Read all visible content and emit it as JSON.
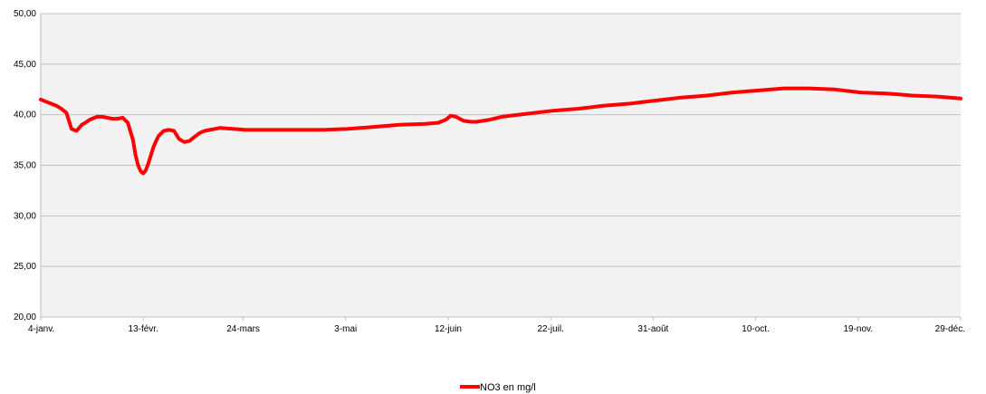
{
  "chart_data": {
    "type": "line",
    "y_ticks": [
      "50,00",
      "45,00",
      "40,00",
      "35,00",
      "30,00",
      "25,00",
      "20,00"
    ],
    "y_tick_values": [
      50,
      45,
      40,
      35,
      30,
      25,
      20
    ],
    "ylim": [
      20,
      50
    ],
    "x_ticks": [
      "4-janv.",
      "13-févr.",
      "24-mars",
      "3-mai",
      "12-juin",
      "22-juil.",
      "31-août",
      "10-oct.",
      "19-nov.",
      "29-déc."
    ],
    "x_tick_days": [
      0,
      40,
      79,
      119,
      159,
      199,
      239,
      279,
      319,
      359
    ],
    "xlim": [
      0,
      359
    ],
    "grid": true,
    "plot_background": "#f2f2f2",
    "legend_position": "bottom",
    "series": [
      {
        "name": "NO3 en mg/l",
        "color": "#ff0000",
        "x": [
          0,
          2,
          4,
          6,
          8,
          10,
          12,
          14,
          16,
          18,
          19,
          20,
          21,
          22,
          23,
          24,
          26,
          28,
          30,
          32,
          34,
          36,
          37,
          38,
          39,
          40,
          41,
          42,
          43,
          44,
          45,
          46,
          48,
          50,
          52,
          54,
          56,
          58,
          60,
          62,
          64,
          66,
          68,
          70,
          75,
          80,
          85,
          90,
          100,
          110,
          120,
          130,
          140,
          150,
          155,
          158,
          160,
          162,
          165,
          168,
          170,
          175,
          180,
          190,
          200,
          210,
          220,
          230,
          240,
          250,
          260,
          270,
          280,
          290,
          300,
          310,
          320,
          330,
          335,
          340,
          350,
          359
        ],
        "y": [
          41.5,
          41.3,
          41.1,
          40.9,
          40.6,
          40.2,
          38.6,
          38.4,
          39.0,
          39.3,
          39.5,
          39.6,
          39.7,
          39.8,
          39.8,
          39.8,
          39.7,
          39.6,
          39.6,
          39.7,
          39.2,
          37.5,
          36.0,
          35.0,
          34.4,
          34.2,
          34.5,
          35.2,
          36.0,
          36.8,
          37.4,
          37.9,
          38.4,
          38.5,
          38.4,
          37.6,
          37.3,
          37.4,
          37.8,
          38.2,
          38.4,
          38.5,
          38.6,
          38.7,
          38.6,
          38.5,
          38.5,
          38.5,
          38.5,
          38.5,
          38.6,
          38.8,
          39.0,
          39.1,
          39.2,
          39.5,
          39.9,
          39.8,
          39.4,
          39.3,
          39.3,
          39.5,
          39.8,
          40.1,
          40.4,
          40.6,
          40.9,
          41.1,
          41.4,
          41.7,
          41.9,
          42.2,
          42.4,
          42.6,
          42.6,
          42.5,
          42.2,
          42.1,
          42.0,
          41.9,
          41.8,
          41.6
        ]
      }
    ]
  }
}
